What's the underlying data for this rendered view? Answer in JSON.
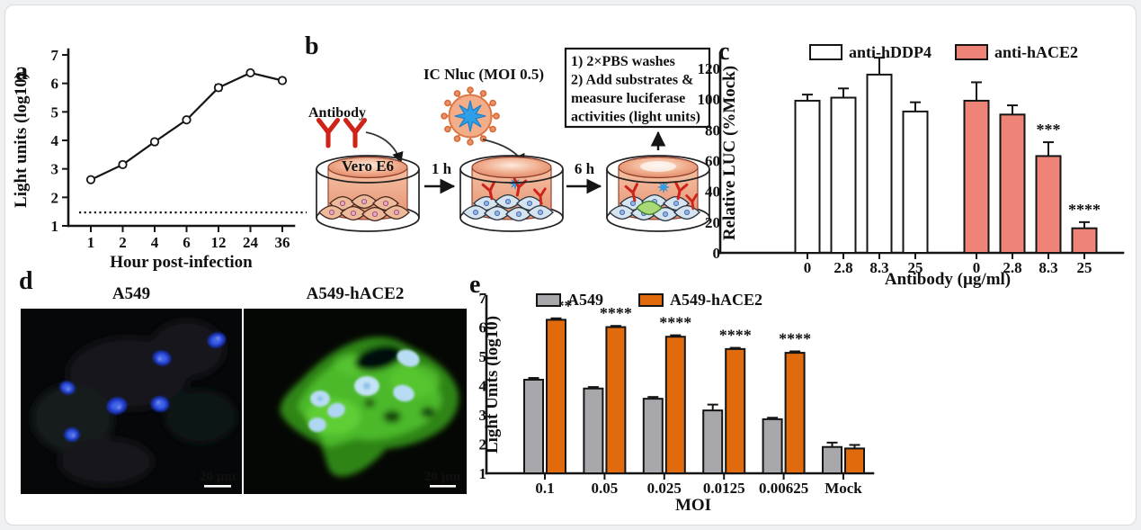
{
  "panels": {
    "a": {
      "label": "a"
    },
    "b": {
      "label": "b",
      "antibody_label": "Antibody",
      "dish_label": "Vero E6",
      "virus_label": "IC Nluc (MOI 0.5)",
      "arrow1_label": "1 h",
      "arrow2_label": "6 h",
      "protocol_lines": [
        "1) 2×PBS washes",
        "2) Add substrates &",
        "measure luciferase",
        "activities (light units)"
      ]
    },
    "c": {
      "label": "c"
    },
    "d": {
      "label": "d",
      "images": [
        {
          "title": "A549",
          "scale_bar_label": "20 µm"
        },
        {
          "title": "A549-hACE2",
          "scale_bar_label": "20 µm"
        }
      ]
    },
    "e": {
      "label": "e"
    }
  },
  "chart_data": [
    {
      "id": "a",
      "type": "line",
      "title": "",
      "xlabel": "Hour post-infection",
      "ylabel": "Light units (log10)",
      "x_categories": [
        "1",
        "2",
        "4",
        "6",
        "12",
        "24",
        "36"
      ],
      "values": [
        2.62,
        3.15,
        3.95,
        4.72,
        5.85,
        6.37,
        6.1
      ],
      "errors": [
        0.06,
        0.08,
        0.08,
        0.07,
        0.1,
        0.07,
        0.08
      ],
      "ylim": [
        1,
        7
      ],
      "yticks": [
        1,
        2,
        3,
        4,
        5,
        6,
        7
      ],
      "dotted_baseline": 1.47,
      "marker": "open-circle",
      "line_color": "#151515",
      "legend_position": "none",
      "grid": false
    },
    {
      "id": "c",
      "type": "bar",
      "title": "",
      "xlabel": "Antibody (µg/ml)",
      "ylabel": "Relative LUC (%Mock)",
      "ylim": [
        0,
        130
      ],
      "yticks": [
        0,
        20,
        40,
        60,
        80,
        100,
        120
      ],
      "legend_position": "top",
      "grid": false,
      "clusters": [
        {
          "name": "anti-hDDP4",
          "color": "#FFFFFF",
          "categories": [
            "0",
            "2.8",
            "8.3",
            "25"
          ],
          "values": [
            99,
            101,
            116,
            92
          ],
          "errors": [
            4,
            6,
            11,
            6
          ],
          "stars": [
            "",
            "",
            "",
            ""
          ]
        },
        {
          "name": "anti-hACE2",
          "color": "#EE8377",
          "categories": [
            "0",
            "2.8",
            "8.3",
            "25"
          ],
          "values": [
            99,
            90,
            63,
            16
          ],
          "errors": [
            12,
            6,
            9,
            4
          ],
          "stars": [
            "",
            "",
            "***",
            "****"
          ]
        }
      ]
    },
    {
      "id": "e",
      "type": "bar",
      "title": "",
      "xlabel": "MOI",
      "ylabel": "Light Units (log10)",
      "ylim": [
        1,
        7
      ],
      "yticks": [
        1,
        2,
        3,
        4,
        5,
        6,
        7
      ],
      "legend_position": "top",
      "grid": false,
      "categories": [
        "0.1",
        "0.05",
        "0.025",
        "0.0125",
        "0.00625",
        "Mock"
      ],
      "series": [
        {
          "name": "A549",
          "color": "#A8A8AC",
          "values": [
            4.2,
            3.9,
            3.55,
            3.15,
            2.85,
            1.9
          ],
          "errors": [
            0.06,
            0.05,
            0.06,
            0.2,
            0.05,
            0.15
          ],
          "stars": [
            "",
            "",
            "",
            "",
            "",
            ""
          ]
        },
        {
          "name": "A549-hACE2",
          "color": "#E06A0C",
          "values": [
            6.25,
            6.0,
            5.67,
            5.25,
            5.12,
            1.85
          ],
          "errors": [
            0.05,
            0.04,
            0.05,
            0.04,
            0.05,
            0.12
          ],
          "stars": [
            "****",
            "****",
            "****",
            "****",
            "****",
            ""
          ]
        }
      ]
    }
  ]
}
